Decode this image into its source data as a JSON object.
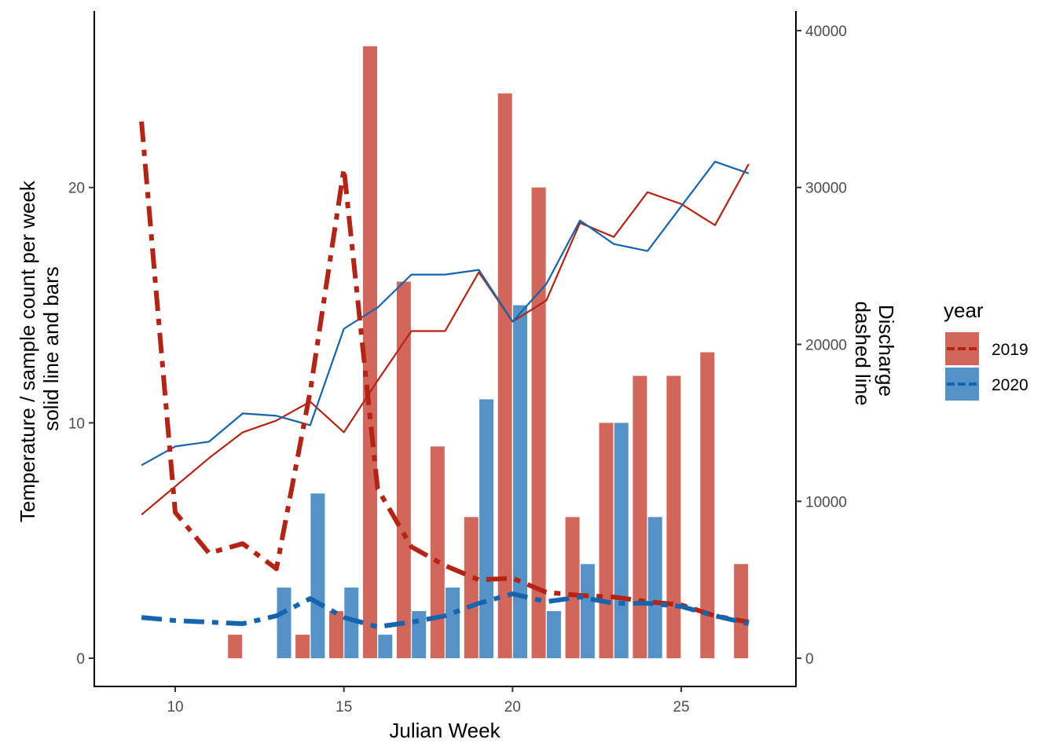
{
  "chart_data": {
    "type": "bar",
    "xlabel": "Julian Week",
    "ylabel_lines": [
      "Temperature / sample count per week",
      "solid line and bars"
    ],
    "y2label_lines": [
      "Discharge",
      "dashed line"
    ],
    "xlim": [
      7.6,
      28.4
    ],
    "x_ticks": [
      10,
      15,
      20,
      25
    ],
    "ylim": [
      -1.2,
      27.5
    ],
    "y_ticks": [
      0,
      10,
      20
    ],
    "y2_ticks": [
      0,
      10000,
      20000,
      30000,
      40000
    ],
    "grid": false,
    "legend": {
      "title": "year",
      "position": "right",
      "entries": [
        "2019",
        "2020"
      ]
    },
    "colors": {
      "2019_bar": "#d2665b",
      "2020_bar": "#5592c8",
      "2019_line": "#b52314",
      "2020_line": "#1564ae"
    },
    "bars": [
      {
        "name": "2019",
        "x": [
          12,
          14,
          15,
          16,
          17,
          18,
          19,
          20,
          21,
          22,
          23,
          24,
          25,
          26,
          27
        ],
        "values": [
          1,
          1,
          2,
          26,
          16,
          9,
          6,
          24,
          20,
          6,
          10,
          12,
          12,
          13,
          4
        ]
      },
      {
        "name": "2020",
        "x": [
          13,
          14,
          15,
          16,
          17,
          18,
          19,
          20,
          21,
          22,
          23,
          24
        ],
        "values": [
          3,
          7,
          3,
          1,
          2,
          3,
          11,
          15,
          2,
          4,
          10,
          6
        ]
      }
    ],
    "temperature": [
      {
        "name": "2019",
        "x": [
          9,
          10,
          11,
          12,
          13,
          14,
          15,
          16,
          17,
          18,
          19,
          20,
          21,
          22,
          23,
          24,
          25,
          26,
          27
        ],
        "values": [
          6.1,
          7.3,
          8.5,
          9.6,
          10.1,
          10.9,
          9.6,
          11.8,
          13.9,
          13.9,
          16.4,
          14.3,
          15.2,
          18.5,
          17.9,
          19.8,
          19.3,
          18.4,
          21.0
        ]
      },
      {
        "name": "2020",
        "x": [
          9,
          10,
          11,
          12,
          13,
          14,
          15,
          16,
          17,
          18,
          19,
          20,
          21,
          22,
          23,
          24,
          25,
          26,
          27
        ],
        "values": [
          8.2,
          9.0,
          9.2,
          10.4,
          10.3,
          9.9,
          14.0,
          14.9,
          16.3,
          16.3,
          16.5,
          14.3,
          15.9,
          18.6,
          17.6,
          17.3,
          19.2,
          21.1,
          20.6
        ]
      }
    ],
    "discharge": [
      {
        "name": "2019",
        "x": [
          9,
          10,
          11,
          12,
          13,
          14,
          15,
          16,
          17,
          18,
          19,
          20,
          21,
          22,
          23,
          24,
          25,
          26,
          27
        ],
        "values": [
          34200,
          9300,
          6700,
          7300,
          5700,
          17000,
          31200,
          10800,
          7100,
          5900,
          5000,
          5100,
          4200,
          4000,
          3900,
          3600,
          3400,
          2700,
          2300
        ]
      },
      {
        "name": "2020",
        "x": [
          9,
          10,
          11,
          12,
          13,
          14,
          15,
          16,
          17,
          18,
          19,
          20,
          21,
          22,
          23,
          24,
          25,
          26,
          27
        ],
        "values": [
          2600,
          2400,
          2300,
          2200,
          2700,
          3800,
          2600,
          2000,
          2300,
          2700,
          3500,
          4100,
          3600,
          3900,
          3500,
          3500,
          3300,
          2700,
          2200
        ]
      }
    ]
  }
}
